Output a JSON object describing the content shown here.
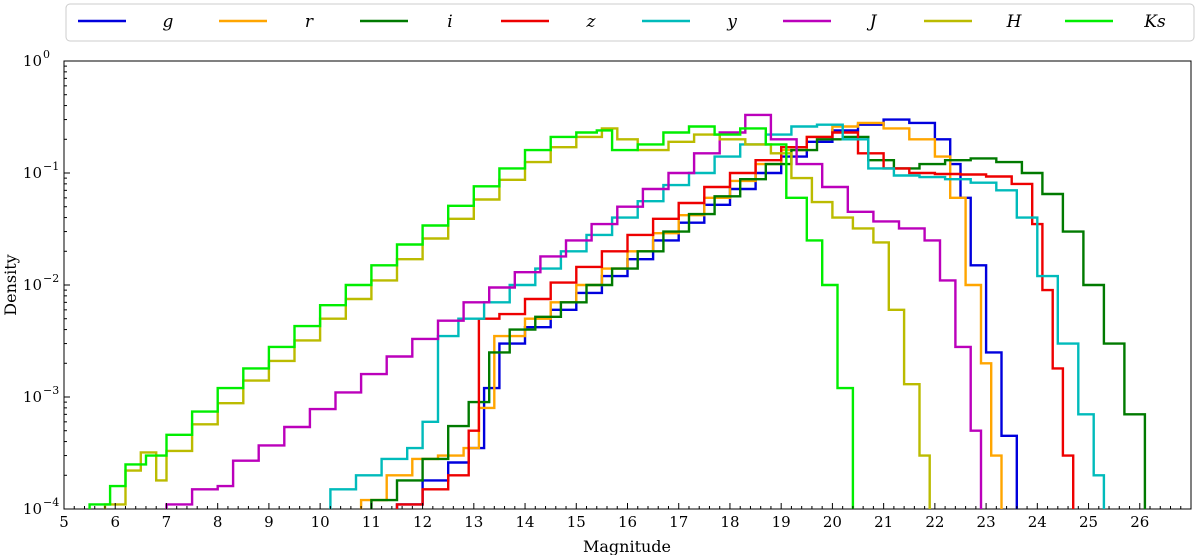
{
  "chart_data": {
    "type": "line",
    "step": true,
    "xlabel": "Magnitude",
    "ylabel": "Density",
    "xlim": [
      5,
      27
    ],
    "ylim": [
      0.0001,
      1
    ],
    "yscale": "log",
    "grid": false,
    "legend_position": "top",
    "x_ticks": [
      "5",
      "6",
      "7",
      "8",
      "9",
      "10",
      "11",
      "12",
      "13",
      "14",
      "15",
      "16",
      "17",
      "18",
      "19",
      "20",
      "21",
      "22",
      "23",
      "24",
      "25",
      "26"
    ],
    "y_ticks": [
      {
        "value": 0.0001,
        "base": "10",
        "exp": "−4"
      },
      {
        "value": 0.001,
        "base": "10",
        "exp": "−3"
      },
      {
        "value": 0.01,
        "base": "10",
        "exp": "−2"
      },
      {
        "value": 0.1,
        "base": "10",
        "exp": "−1"
      },
      {
        "value": 1,
        "base": "10",
        "exp": "0"
      }
    ],
    "series": [
      {
        "name": "g",
        "color": "#0000dd",
        "points": [
          [
            11.5,
            0.00011
          ],
          [
            12,
            0.00018
          ],
          [
            12.5,
            0.00026
          ],
          [
            12.9,
            0.00035
          ],
          [
            13.2,
            0.0012
          ],
          [
            13.5,
            0.003
          ],
          [
            14,
            0.0042
          ],
          [
            14.5,
            0.006
          ],
          [
            15,
            0.0085
          ],
          [
            15.5,
            0.012
          ],
          [
            16,
            0.017
          ],
          [
            16.5,
            0.025
          ],
          [
            17,
            0.036
          ],
          [
            17.5,
            0.052
          ],
          [
            18,
            0.072
          ],
          [
            18.5,
            0.1
          ],
          [
            19,
            0.14
          ],
          [
            19.5,
            0.19
          ],
          [
            20,
            0.24
          ],
          [
            20.5,
            0.27
          ],
          [
            21,
            0.3
          ],
          [
            21.5,
            0.28
          ],
          [
            22,
            0.2
          ],
          [
            22.3,
            0.12
          ],
          [
            22.5,
            0.06
          ],
          [
            22.7,
            0.015
          ],
          [
            23,
            0.0025
          ],
          [
            23.3,
            0.00045
          ],
          [
            23.6,
            0.0001
          ]
        ]
      },
      {
        "name": "r",
        "color": "#ffa500",
        "points": [
          [
            10.8,
            0.00012
          ],
          [
            11.3,
            0.0002
          ],
          [
            11.8,
            0.00028
          ],
          [
            12.3,
            0.0003
          ],
          [
            12.8,
            0.00035
          ],
          [
            13.1,
            0.0008
          ],
          [
            13.4,
            0.0035
          ],
          [
            14,
            0.005
          ],
          [
            14.5,
            0.007
          ],
          [
            15,
            0.01
          ],
          [
            15.5,
            0.014
          ],
          [
            16,
            0.02
          ],
          [
            16.5,
            0.029
          ],
          [
            17,
            0.042
          ],
          [
            17.5,
            0.06
          ],
          [
            18,
            0.085
          ],
          [
            18.5,
            0.12
          ],
          [
            19,
            0.16
          ],
          [
            19.5,
            0.21
          ],
          [
            20,
            0.26
          ],
          [
            20.5,
            0.28
          ],
          [
            21,
            0.25
          ],
          [
            21.5,
            0.2
          ],
          [
            22,
            0.14
          ],
          [
            22.3,
            0.06
          ],
          [
            22.6,
            0.01
          ],
          [
            22.9,
            0.002
          ],
          [
            23.1,
            0.0003
          ],
          [
            23.3,
            0.0001
          ]
        ]
      },
      {
        "name": "i",
        "color": "#007a00",
        "points": [
          [
            11,
            0.00012
          ],
          [
            11.5,
            0.00018
          ],
          [
            12,
            0.00028
          ],
          [
            12.5,
            0.00055
          ],
          [
            12.9,
            0.0009
          ],
          [
            13.3,
            0.0025
          ],
          [
            13.7,
            0.004
          ],
          [
            14.2,
            0.0052
          ],
          [
            14.7,
            0.007
          ],
          [
            15.2,
            0.01
          ],
          [
            15.7,
            0.014
          ],
          [
            16.2,
            0.02
          ],
          [
            16.7,
            0.03
          ],
          [
            17.2,
            0.043
          ],
          [
            17.7,
            0.062
          ],
          [
            18.2,
            0.088
          ],
          [
            18.7,
            0.12
          ],
          [
            19.2,
            0.16
          ],
          [
            19.7,
            0.2
          ],
          [
            20.2,
            0.21
          ],
          [
            20.7,
            0.13
          ],
          [
            21.2,
            0.11
          ],
          [
            21.7,
            0.12
          ],
          [
            22.2,
            0.13
          ],
          [
            22.7,
            0.135
          ],
          [
            23.2,
            0.125
          ],
          [
            23.7,
            0.1
          ],
          [
            24.1,
            0.065
          ],
          [
            24.5,
            0.03
          ],
          [
            24.9,
            0.01
          ],
          [
            25.3,
            0.003
          ],
          [
            25.7,
            0.0007
          ],
          [
            26.1,
            0.0001
          ]
        ]
      },
      {
        "name": "z",
        "color": "#ee0000",
        "points": [
          [
            11.5,
            0.00011
          ],
          [
            12,
            0.00015
          ],
          [
            12.5,
            0.0002
          ],
          [
            12.9,
            0.0005
          ],
          [
            13.1,
            0.005
          ],
          [
            13.5,
            0.0055
          ],
          [
            14,
            0.0075
          ],
          [
            14.5,
            0.0105
          ],
          [
            15,
            0.0145
          ],
          [
            15.5,
            0.02
          ],
          [
            16,
            0.028
          ],
          [
            16.5,
            0.039
          ],
          [
            17,
            0.054
          ],
          [
            17.5,
            0.075
          ],
          [
            18,
            0.1
          ],
          [
            18.5,
            0.13
          ],
          [
            19,
            0.17
          ],
          [
            19.5,
            0.21
          ],
          [
            20,
            0.23
          ],
          [
            20.5,
            0.15
          ],
          [
            21,
            0.11
          ],
          [
            21.5,
            0.1
          ],
          [
            22,
            0.098
          ],
          [
            22.5,
            0.097
          ],
          [
            23,
            0.093
          ],
          [
            23.5,
            0.08
          ],
          [
            23.9,
            0.035
          ],
          [
            24.1,
            0.009
          ],
          [
            24.3,
            0.0018
          ],
          [
            24.5,
            0.0003
          ],
          [
            24.7,
            0.0001
          ]
        ]
      },
      {
        "name": "y",
        "color": "#00bbbb",
        "points": [
          [
            10.2,
            0.00015
          ],
          [
            10.7,
            0.0002
          ],
          [
            11.2,
            0.00028
          ],
          [
            11.7,
            0.00035
          ],
          [
            12,
            0.0006
          ],
          [
            12.3,
            0.0035
          ],
          [
            12.7,
            0.005
          ],
          [
            13.2,
            0.007
          ],
          [
            13.7,
            0.01
          ],
          [
            14.2,
            0.014
          ],
          [
            14.7,
            0.02
          ],
          [
            15.2,
            0.028
          ],
          [
            15.7,
            0.04
          ],
          [
            16.2,
            0.056
          ],
          [
            16.7,
            0.078
          ],
          [
            17.2,
            0.1
          ],
          [
            17.7,
            0.14
          ],
          [
            18.2,
            0.18
          ],
          [
            18.7,
            0.22
          ],
          [
            19.2,
            0.26
          ],
          [
            19.7,
            0.27
          ],
          [
            20.2,
            0.2
          ],
          [
            20.7,
            0.11
          ],
          [
            21.2,
            0.095
          ],
          [
            21.7,
            0.092
          ],
          [
            22.2,
            0.088
          ],
          [
            22.7,
            0.082
          ],
          [
            23.2,
            0.07
          ],
          [
            23.6,
            0.04
          ],
          [
            24,
            0.012
          ],
          [
            24.4,
            0.003
          ],
          [
            24.8,
            0.0007
          ],
          [
            25.1,
            0.0002
          ],
          [
            25.3,
            0.0001
          ]
        ]
      },
      {
        "name": "J",
        "color": "#bb00bb",
        "points": [
          [
            7,
            0.00011
          ],
          [
            7.5,
            0.00015
          ],
          [
            8,
            0.00016
          ],
          [
            8.3,
            0.00027
          ],
          [
            8.8,
            0.00037
          ],
          [
            9.3,
            0.00054
          ],
          [
            9.8,
            0.00078
          ],
          [
            10.3,
            0.0011
          ],
          [
            10.8,
            0.0016
          ],
          [
            11.3,
            0.0023
          ],
          [
            11.8,
            0.0033
          ],
          [
            12.3,
            0.0048
          ],
          [
            12.8,
            0.007
          ],
          [
            13.3,
            0.0095
          ],
          [
            13.8,
            0.013
          ],
          [
            14.3,
            0.018
          ],
          [
            14.8,
            0.025
          ],
          [
            15.3,
            0.035
          ],
          [
            15.8,
            0.05
          ],
          [
            16.3,
            0.072
          ],
          [
            16.8,
            0.1
          ],
          [
            17.3,
            0.15
          ],
          [
            17.8,
            0.23
          ],
          [
            18.3,
            0.33
          ],
          [
            18.8,
            0.2
          ],
          [
            19.3,
            0.12
          ],
          [
            19.8,
            0.075
          ],
          [
            20.3,
            0.045
          ],
          [
            20.8,
            0.037
          ],
          [
            21.3,
            0.032
          ],
          [
            21.8,
            0.025
          ],
          [
            22.1,
            0.011
          ],
          [
            22.4,
            0.0028
          ],
          [
            22.7,
            0.0005
          ],
          [
            22.9,
            0.0001
          ]
        ]
      },
      {
        "name": "H",
        "color": "#bbbb00",
        "points": [
          [
            5.8,
            0.00011
          ],
          [
            6.2,
            0.00022
          ],
          [
            6.5,
            0.00032
          ],
          [
            6.8,
            0.00018
          ],
          [
            7,
            0.00033
          ],
          [
            7.5,
            0.00057
          ],
          [
            8,
            0.00088
          ],
          [
            8.5,
            0.0014
          ],
          [
            9,
            0.0021
          ],
          [
            9.5,
            0.0032
          ],
          [
            10,
            0.005
          ],
          [
            10.5,
            0.0075
          ],
          [
            11,
            0.011
          ],
          [
            11.5,
            0.017
          ],
          [
            12,
            0.026
          ],
          [
            12.5,
            0.039
          ],
          [
            13,
            0.058
          ],
          [
            13.5,
            0.087
          ],
          [
            14,
            0.125
          ],
          [
            14.5,
            0.17
          ],
          [
            15,
            0.21
          ],
          [
            15.5,
            0.25
          ],
          [
            15.8,
            0.2
          ],
          [
            16.2,
            0.16
          ],
          [
            16.8,
            0.19
          ],
          [
            17.3,
            0.22
          ],
          [
            17.8,
            0.2
          ],
          [
            18.3,
            0.18
          ],
          [
            18.8,
            0.15
          ],
          [
            19.2,
            0.09
          ],
          [
            19.6,
            0.055
          ],
          [
            20,
            0.04
          ],
          [
            20.4,
            0.032
          ],
          [
            20.8,
            0.024
          ],
          [
            21.1,
            0.006
          ],
          [
            21.4,
            0.0013
          ],
          [
            21.7,
            0.0003
          ],
          [
            21.9,
            0.0001
          ]
        ]
      },
      {
        "name": "Ks",
        "color": "#00ee00",
        "points": [
          [
            5.5,
            0.00011
          ],
          [
            5.9,
            0.00016
          ],
          [
            6.2,
            0.00025
          ],
          [
            6.6,
            0.0003
          ],
          [
            7,
            0.00046
          ],
          [
            7.5,
            0.00074
          ],
          [
            8,
            0.0012
          ],
          [
            8.5,
            0.0018
          ],
          [
            9,
            0.0028
          ],
          [
            9.5,
            0.0043
          ],
          [
            10,
            0.0066
          ],
          [
            10.5,
            0.01
          ],
          [
            11,
            0.015
          ],
          [
            11.5,
            0.023
          ],
          [
            12,
            0.034
          ],
          [
            12.5,
            0.051
          ],
          [
            13,
            0.076
          ],
          [
            13.5,
            0.11
          ],
          [
            14,
            0.16
          ],
          [
            14.5,
            0.21
          ],
          [
            15,
            0.23
          ],
          [
            15.4,
            0.24
          ],
          [
            15.7,
            0.16
          ],
          [
            16.2,
            0.18
          ],
          [
            16.7,
            0.23
          ],
          [
            17.2,
            0.26
          ],
          [
            17.7,
            0.22
          ],
          [
            18.2,
            0.25
          ],
          [
            18.7,
            0.18
          ],
          [
            19.1,
            0.06
          ],
          [
            19.5,
            0.025
          ],
          [
            19.8,
            0.01
          ],
          [
            20.1,
            0.0012
          ],
          [
            20.4,
            0.0001
          ]
        ]
      }
    ]
  }
}
